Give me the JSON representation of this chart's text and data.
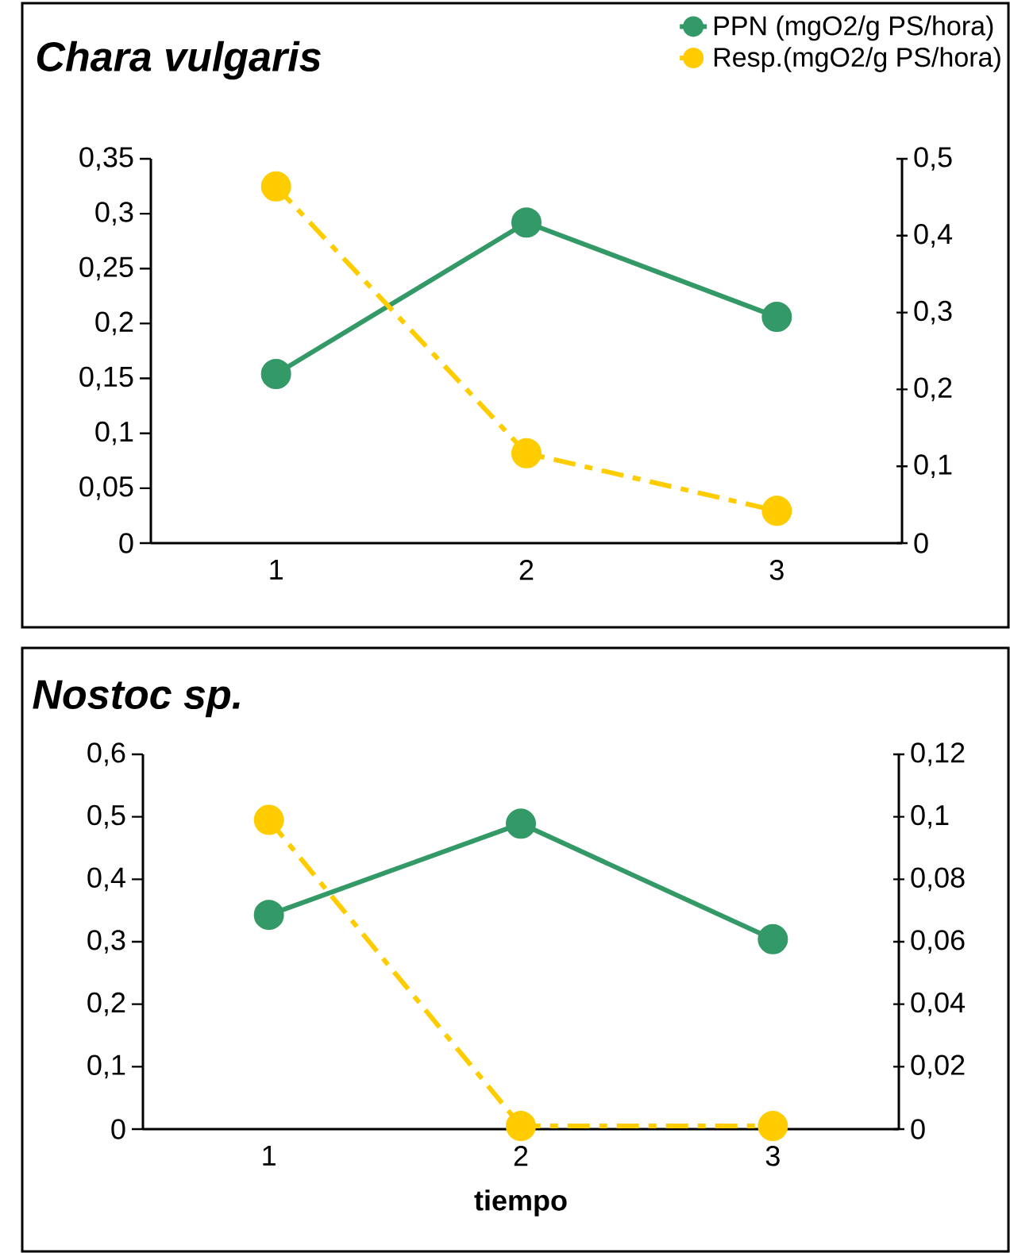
{
  "chart_data": [
    {
      "type": "line",
      "title": "Chara vulgaris",
      "categories": [
        "1",
        "2",
        "3"
      ],
      "series": [
        {
          "name": "PPN (mgO2/g PS/hora)",
          "color": "#339966",
          "values": [
            0.154,
            0.292,
            0.206
          ],
          "line_style": "solid"
        },
        {
          "name": "Resp.(mgO2/g PS/hora)",
          "color": "#ffcc00",
          "values": [
            0.464,
            0.117,
            0.042
          ],
          "axis": "y2",
          "line_style": "dashed"
        }
      ],
      "ylim": [
        0,
        0.35
      ],
      "yticks": [
        0,
        {
          "value": 0.05,
          "label": "0,05"
        },
        {
          "value": 0.1,
          "label": "0,1"
        },
        {
          "value": 0.15,
          "label": "0,15"
        },
        {
          "value": 0.2,
          "label": "0,2"
        },
        {
          "value": 0.25,
          "label": "0,25"
        },
        {
          "value": 0.3,
          "label": "0,3"
        },
        {
          "value": 0.35,
          "label": "0,35"
        }
      ],
      "y2lim": [
        0,
        0.5
      ],
      "y2ticks": [
        0,
        {
          "value": 0.1,
          "label": "0,1"
        },
        {
          "value": 0.2,
          "label": "0,2"
        },
        {
          "value": 0.3,
          "label": "0,3"
        },
        {
          "value": 0.4,
          "label": "0,4"
        },
        {
          "value": 0.5,
          "label": "0,5"
        }
      ],
      "marker": "circle",
      "legend": "top right"
    },
    {
      "type": "line",
      "title": "Nostoc sp.",
      "xlabel": "tiempo",
      "categories": [
        "1",
        "2",
        "3"
      ],
      "series": [
        {
          "color": "#339966",
          "values": [
            0.343,
            0.489,
            0.304
          ],
          "line_style": "solid"
        },
        {
          "color": "#ffcc00",
          "values": [
            0.099,
            0.001,
            0.001
          ],
          "axis": "y2",
          "line_style": "dashed"
        }
      ],
      "ylim": [
        0,
        0.6
      ],
      "yticks": [
        0,
        {
          "value": 0.1,
          "label": "0,1"
        },
        {
          "value": 0.2,
          "label": "0,2"
        },
        {
          "value": 0.3,
          "label": "0,3"
        },
        {
          "value": 0.4,
          "label": "0,4"
        },
        {
          "value": 0.5,
          "label": "0,5"
        },
        {
          "value": 0.6,
          "label": "0,6"
        }
      ],
      "y2lim": [
        0,
        0.12
      ],
      "y2ticks": [
        0,
        {
          "value": 0.02,
          "label": "0,02"
        },
        {
          "value": 0.04,
          "label": "0,04"
        },
        {
          "value": 0.06,
          "label": "0,06"
        },
        {
          "value": 0.08,
          "label": "0,08"
        },
        {
          "value": 0.1,
          "label": "0,1"
        },
        {
          "value": 0.12,
          "label": "0,12"
        }
      ],
      "marker": "circle"
    }
  ]
}
